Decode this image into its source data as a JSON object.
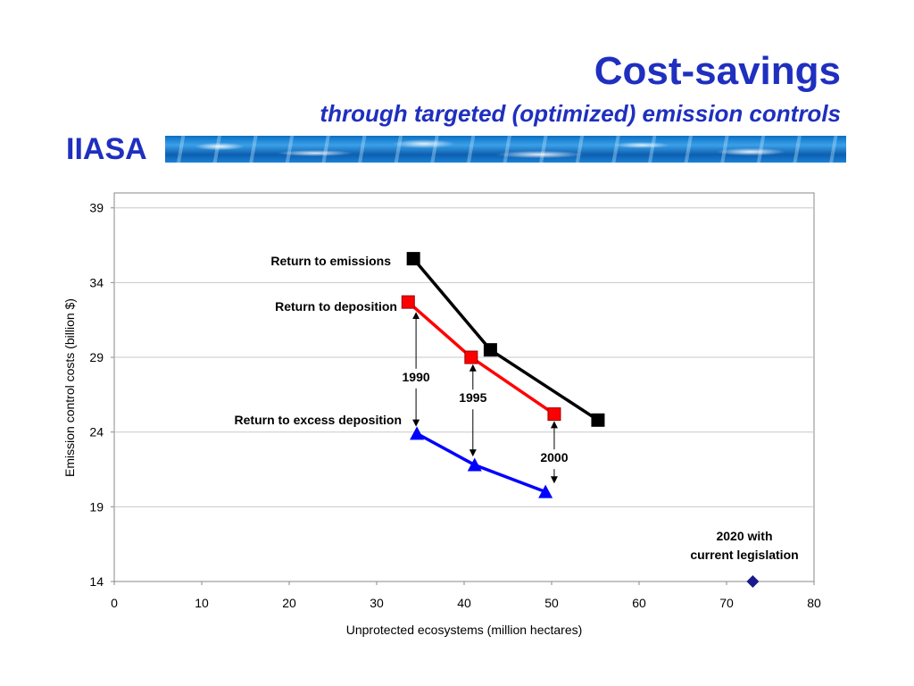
{
  "header": {
    "title": "Cost-savings",
    "subtitle": "through targeted (optimized) emission controls",
    "org": "IIASA"
  },
  "chart_data": {
    "type": "line",
    "title": "",
    "xlabel": "Unprotected ecosystems (million hectares)",
    "ylabel": "Emission control costs (billion $)",
    "xlim": [
      0,
      80
    ],
    "ylim": [
      14,
      40
    ],
    "xticks": [
      0,
      10,
      20,
      30,
      40,
      50,
      60,
      70,
      80
    ],
    "yticks": [
      14,
      19,
      24,
      29,
      34,
      39
    ],
    "grid": "horizontal",
    "series": [
      {
        "name": "Return to emissions",
        "color": "#000000",
        "marker": "square",
        "x": [
          34.2,
          43.0,
          55.3
        ],
        "y": [
          35.6,
          29.5,
          24.8
        ]
      },
      {
        "name": "Return to deposition",
        "color": "#ff0000",
        "marker": "square",
        "x": [
          33.6,
          40.8,
          50.3
        ],
        "y": [
          32.7,
          29.0,
          25.2
        ]
      },
      {
        "name": "Return to excess deposition",
        "color": "#0000ff",
        "marker": "triangle",
        "x": [
          34.6,
          41.2,
          49.3
        ],
        "y": [
          23.9,
          21.8,
          20.0
        ]
      },
      {
        "name": "2020 with current legislation",
        "color": "#1a1a8c",
        "marker": "diamond",
        "x": [
          73.0
        ],
        "y": [
          14.0
        ]
      }
    ],
    "annotations": [
      {
        "text": "1990",
        "x": 34.5,
        "y": 27.4,
        "arrow_from": [
          34.5,
          27.0
        ],
        "arrow_up_to": 31.8,
        "arrow_down_to": 24.6
      },
      {
        "text": "1995",
        "x": 41.0,
        "y": 26.0,
        "arrow_from": [
          41.0,
          25.5
        ],
        "arrow_up_to": 28.3,
        "arrow_down_to": 22.6
      },
      {
        "text": "2000",
        "x": 50.3,
        "y": 22.0,
        "arrow_from": [
          50.3,
          22.6
        ],
        "arrow_up_to": 24.5,
        "arrow_down_to": 20.8
      }
    ],
    "point_labels": [
      "2020 with",
      "current legislation"
    ]
  }
}
